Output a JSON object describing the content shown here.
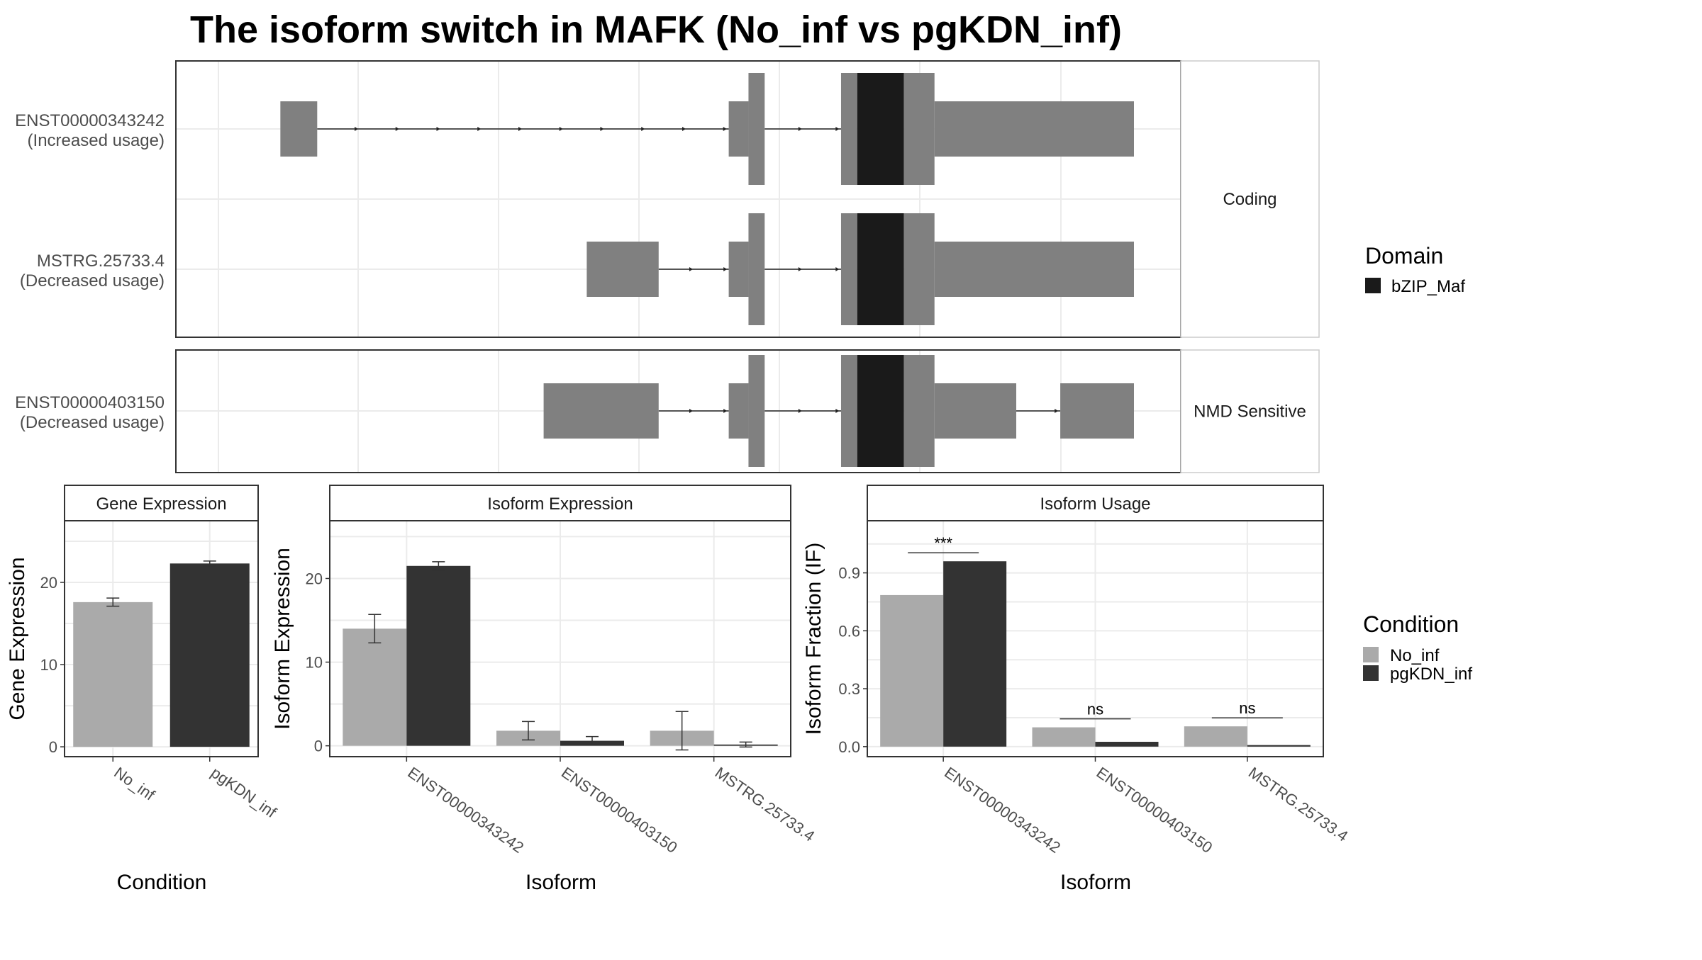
{
  "title": "The isoform switch in MAFK (No_inf vs pgKDN_inf)",
  "colors": {
    "exon": "#808080",
    "domain": "#1a1a1a",
    "no_inf": "#aaaaaa",
    "pgkdn_inf": "#333333",
    "grid": "#ebebeb",
    "border": "#333333"
  },
  "legends": {
    "domain": {
      "title": "Domain",
      "items": [
        {
          "label": "bZIP_Maf",
          "color": "#1a1a1a"
        }
      ]
    },
    "condition": {
      "title": "Condition",
      "items": [
        {
          "label": "No_inf",
          "color": "#aaaaaa"
        },
        {
          "label": "pgKDN_inf",
          "color": "#333333"
        }
      ]
    }
  },
  "chart_data": [
    {
      "type": "gene_structure",
      "groups": [
        {
          "strip": "Coding",
          "transcripts": [
            {
              "id": "ENST00000343242",
              "status": "(Increased usage)",
              "exons": [
                [
                  0.05,
                  0.091,
                  "utr"
                ],
                [
                  0.549,
                  0.571,
                  "utr"
                ],
                [
                  0.571,
                  0.589,
                  "cds"
                ],
                [
                  0.674,
                  0.692,
                  "cds"
                ],
                [
                  0.692,
                  0.744,
                  "domain"
                ],
                [
                  0.744,
                  0.778,
                  "cds"
                ],
                [
                  0.778,
                  1.0,
                  "utr"
                ]
              ]
            },
            {
              "id": "MSTRG.25733.4",
              "status": "(Decreased usage)",
              "exons": [
                [
                  0.391,
                  0.471,
                  "utr"
                ],
                [
                  0.549,
                  0.571,
                  "utr"
                ],
                [
                  0.571,
                  0.589,
                  "cds"
                ],
                [
                  0.674,
                  0.692,
                  "cds"
                ],
                [
                  0.692,
                  0.744,
                  "domain"
                ],
                [
                  0.744,
                  0.778,
                  "cds"
                ],
                [
                  0.778,
                  1.0,
                  "utr"
                ]
              ]
            }
          ]
        },
        {
          "strip": "NMD Sensitive",
          "transcripts": [
            {
              "id": "ENST00000403150",
              "status": "(Decreased usage)",
              "exons": [
                [
                  0.343,
                  0.471,
                  "utr"
                ],
                [
                  0.549,
                  0.571,
                  "utr"
                ],
                [
                  0.571,
                  0.589,
                  "cds"
                ],
                [
                  0.674,
                  0.692,
                  "cds"
                ],
                [
                  0.692,
                  0.744,
                  "domain"
                ],
                [
                  0.744,
                  0.778,
                  "cds"
                ],
                [
                  0.778,
                  0.869,
                  "utr"
                ],
                [
                  0.918,
                  1.0,
                  "utr"
                ]
              ]
            }
          ]
        }
      ]
    },
    {
      "type": "bar",
      "strip": "Gene Expression",
      "xlabel": "Condition",
      "ylabel": "Gene Expression",
      "categories": [
        "No_inf",
        "pgKDN_inf"
      ],
      "series": [
        {
          "values": [
            17.6,
            22.3
          ],
          "errors": [
            0.5,
            0.3
          ]
        }
      ],
      "ylim": [
        -1.2,
        27.5
      ],
      "yticks": [
        0,
        10,
        20
      ]
    },
    {
      "type": "bar",
      "strip": "Isoform Expression",
      "xlabel": "Isoform",
      "ylabel": "Isoform Expression",
      "categories": [
        "ENST00000343242",
        "ENST00000403150",
        "MSTRG.25733.4"
      ],
      "series": [
        {
          "name": "No_inf",
          "values": [
            14.0,
            1.8,
            1.8
          ],
          "errors": [
            1.7,
            1.1,
            2.3
          ]
        },
        {
          "name": "pgKDN_inf",
          "values": [
            21.5,
            0.6,
            0.15
          ],
          "errors": [
            0.5,
            0.5,
            0.3
          ]
        }
      ],
      "ylim": [
        -1.3,
        26.9
      ],
      "yticks": [
        0,
        10,
        20
      ]
    },
    {
      "type": "bar",
      "strip": "Isoform Usage",
      "xlabel": "Isoform",
      "ylabel": "Isoform Fraction (IF)",
      "categories": [
        "ENST00000343242",
        "ENST00000403150",
        "MSTRG.25733.4"
      ],
      "series": [
        {
          "name": "No_inf",
          "values": [
            0.785,
            0.1,
            0.105
          ]
        },
        {
          "name": "pgKDN_inf",
          "values": [
            0.96,
            0.025,
            0.008
          ]
        }
      ],
      "significance": [
        "***",
        "ns",
        "ns"
      ],
      "ylim": [
        -0.052,
        1.17
      ],
      "yticks": [
        "0.0",
        "0.3",
        "0.6",
        "0.9"
      ]
    }
  ]
}
